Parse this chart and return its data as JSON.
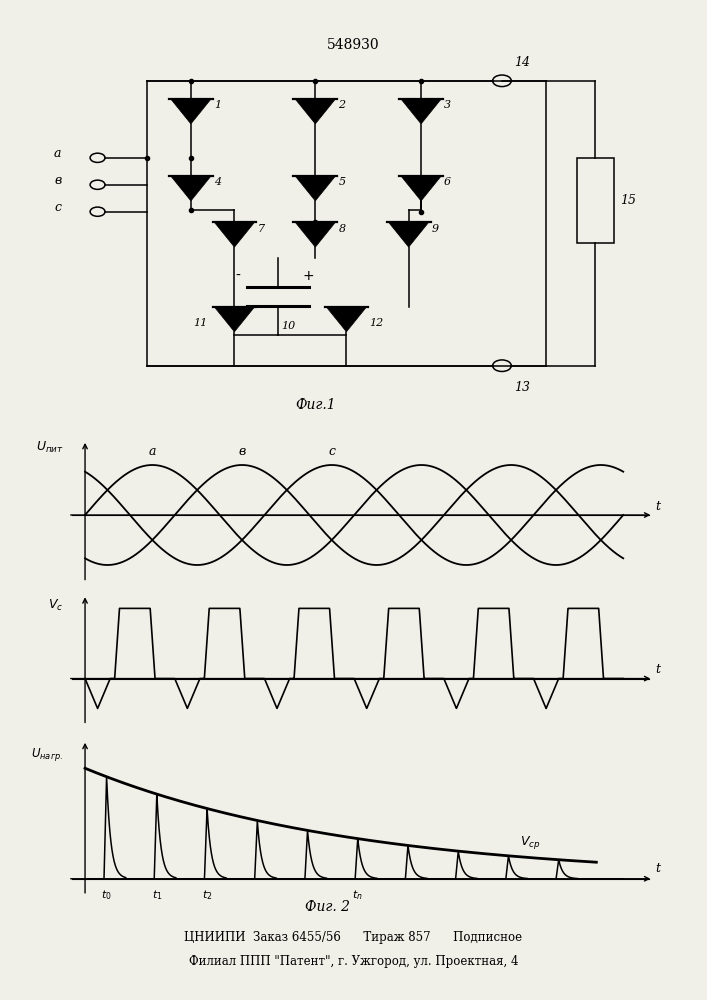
{
  "title": "548930",
  "fig1_label": "Фиг.1",
  "fig2_label": "Фиг. 2",
  "bottom_text1": "ЦНИИПИ  Заказ 6455/56      Тираж 857      Подписное",
  "bottom_text2": "Филиал ППП \"Патент\", г. Ужгород, ул. Проектная, 4",
  "background_color": "#f0efe8",
  "line_color": "#000000"
}
